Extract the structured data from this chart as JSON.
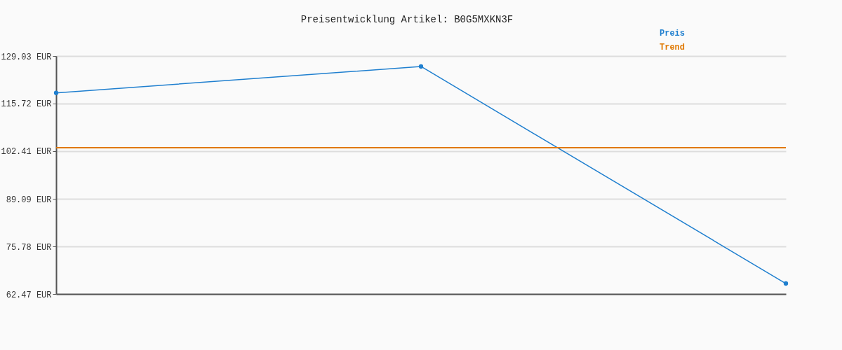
{
  "chart_data": {
    "type": "line",
    "title": "Preisentwicklung Artikel: B0G5MXKN3F",
    "categories": [
      null,
      null,
      null
    ],
    "series": [
      {
        "name": "Preis",
        "color": "#1f7fcf",
        "values": [
          118.7,
          126.1,
          65.4
        ],
        "marker": "circle"
      },
      {
        "name": "Trend",
        "color": "#e07800",
        "values": [
          103.4,
          103.4,
          103.4
        ],
        "marker": "none"
      }
    ],
    "ylim": [
      62.47,
      129.03
    ],
    "yticks": [
      {
        "value": 62.47,
        "label": "62.47 EUR"
      },
      {
        "value": 75.78,
        "label": "75.78 EUR"
      },
      {
        "value": 89.09,
        "label": "89.09 EUR"
      },
      {
        "value": 102.41,
        "label": "102.41 EUR"
      },
      {
        "value": 115.72,
        "label": "115.72 EUR"
      },
      {
        "value": 129.03,
        "label": "129.03 EUR"
      }
    ],
    "grid": "y",
    "legend": "top right",
    "tick_labels": "y"
  }
}
